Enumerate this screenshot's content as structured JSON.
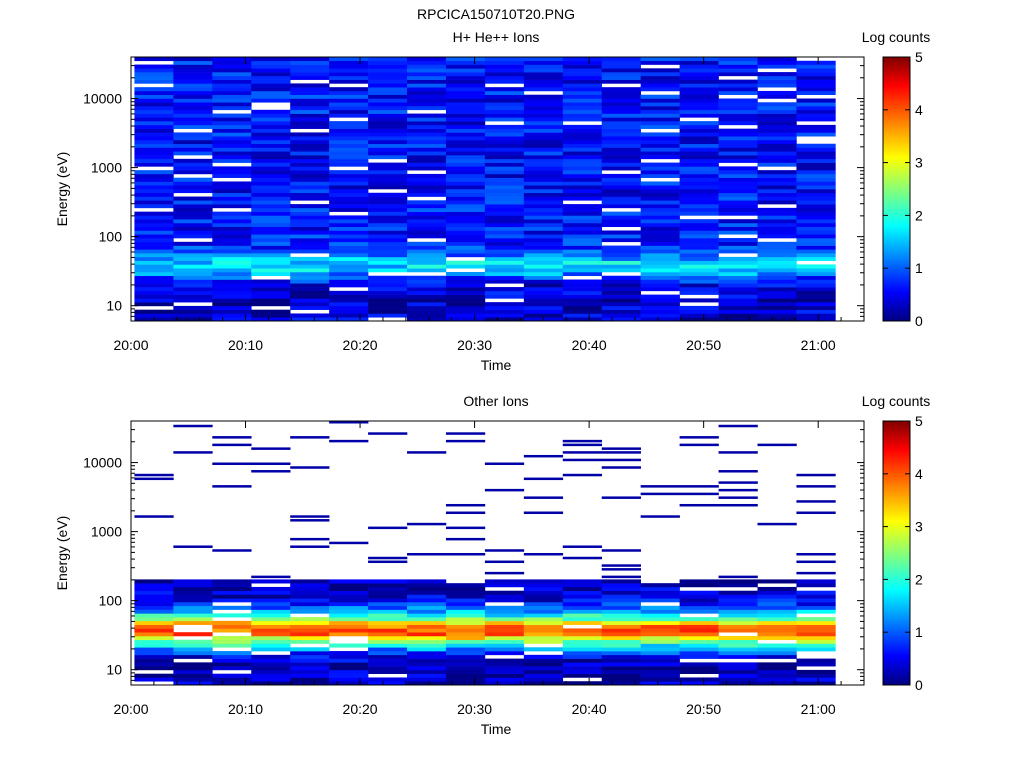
{
  "figure_title": "RPCICA150710T20.PNG",
  "colorscale": {
    "name": "jet",
    "stops": [
      "#00007f",
      "#0000ff",
      "#00ffff",
      "#ffff00",
      "#ff0000",
      "#7f0000"
    ]
  },
  "chart_data": [
    {
      "type": "heatmap",
      "title": "H+ He++ Ions",
      "xlabel": "Time",
      "ylabel": "Energy (eV)",
      "x_tick_labels": [
        "20:00",
        "20:10",
        "20:20",
        "20:30",
        "20:40",
        "20:50",
        "21:00"
      ],
      "x_range_minutes": [
        0,
        64
      ],
      "y_scale": "log",
      "y_range": [
        6,
        40000
      ],
      "y_tick_labels": [
        "10",
        "100",
        "1000",
        "10000"
      ],
      "colorbar": {
        "label": "Log counts",
        "range": [
          0,
          5
        ],
        "tick_labels": [
          "0",
          "1",
          "2",
          "3",
          "4",
          "5"
        ]
      },
      "profile": [
        {
          "energy": 8,
          "value": 0.4
        },
        {
          "energy": 12,
          "value": 0.3
        },
        {
          "energy": 16,
          "value": 0.5
        },
        {
          "energy": 20,
          "value": 0.5
        },
        {
          "energy": 26,
          "value": 1.0
        },
        {
          "energy": 33,
          "value": 1.7
        },
        {
          "energy": 43,
          "value": 1.7
        },
        {
          "energy": 55,
          "value": 1.2
        },
        {
          "energy": 72,
          "value": 0.8
        },
        {
          "energy": 95,
          "value": 0.75
        },
        {
          "energy": 200,
          "value": 0.7
        },
        {
          "energy": 1000,
          "value": 0.65
        },
        {
          "energy": 10000,
          "value": 0.7
        },
        {
          "energy": 40000,
          "value": 0.7
        }
      ],
      "gap_probability": 0.06,
      "seed": 7
    },
    {
      "type": "heatmap",
      "title": "Other Ions",
      "xlabel": "Time",
      "ylabel": "Energy (eV)",
      "x_tick_labels": [
        "20:00",
        "20:10",
        "20:20",
        "20:30",
        "20:40",
        "20:50",
        "21:00"
      ],
      "x_range_minutes": [
        0,
        64
      ],
      "y_scale": "log",
      "y_range": [
        6,
        40000
      ],
      "y_tick_labels": [
        "10",
        "100",
        "1000",
        "10000"
      ],
      "colorbar": {
        "label": "Log counts",
        "range": [
          0,
          5
        ],
        "tick_labels": [
          "0",
          "1",
          "2",
          "3",
          "4",
          "5"
        ]
      },
      "profile": [
        {
          "energy": 8,
          "value": 0.3
        },
        {
          "energy": 12,
          "value": 0.3
        },
        {
          "energy": 16,
          "value": 0.5
        },
        {
          "energy": 20,
          "value": 1.4
        },
        {
          "energy": 26,
          "value": 2.5
        },
        {
          "energy": 33,
          "value": 3.9
        },
        {
          "energy": 43,
          "value": 3.9
        },
        {
          "energy": 55,
          "value": 2.3
        },
        {
          "energy": 72,
          "value": 1.4
        },
        {
          "energy": 95,
          "value": 0.6
        },
        {
          "energy": 125,
          "value": 0.4
        },
        {
          "energy": 165,
          "value": 0.3
        },
        {
          "energy": 200,
          "value": 0.2
        },
        {
          "energy": 40000,
          "value": 0.2
        }
      ],
      "sparse_above_energy": 200,
      "sparse_probability": 0.12,
      "gap_probability": 0.08,
      "seed": 19
    }
  ]
}
